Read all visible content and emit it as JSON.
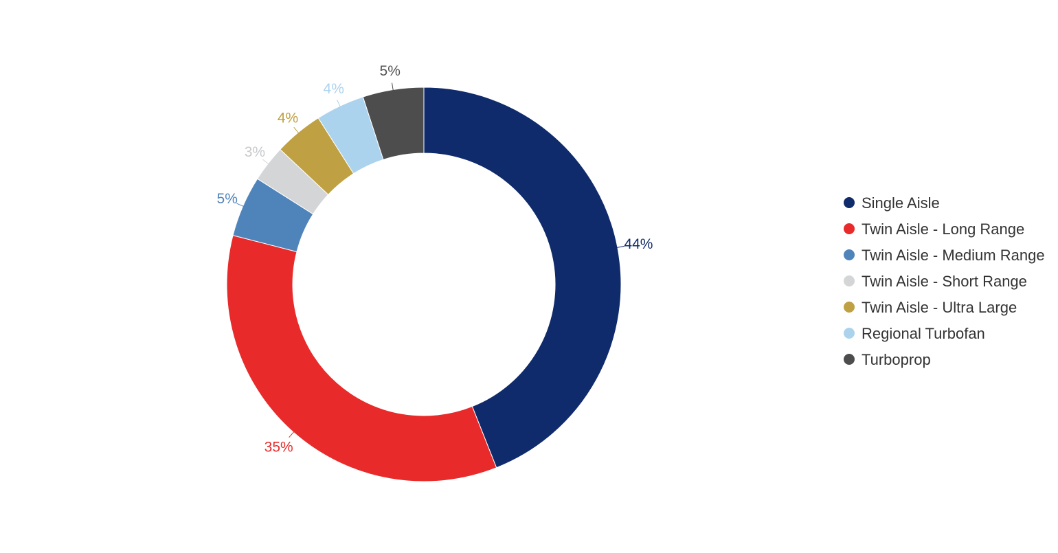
{
  "chart_data": {
    "type": "pie",
    "variant": "donut",
    "title": "",
    "legend_position": "right",
    "series": [
      {
        "name": "Single Aisle",
        "value": 44,
        "label": "44%",
        "color": "#0f2b6b"
      },
      {
        "name": "Twin Aisle - Long Range",
        "value": 35,
        "label": "35%",
        "color": "#e82a2a"
      },
      {
        "name": "Twin Aisle - Medium Range",
        "value": 5,
        "label": "5%",
        "color": "#4f84bb"
      },
      {
        "name": "Twin Aisle - Short Range",
        "value": 3,
        "label": "3%",
        "color": "#d4d5d7"
      },
      {
        "name": "Twin Aisle - Ultra Large",
        "value": 4,
        "label": "4%",
        "color": "#bfa042"
      },
      {
        "name": "Regional Turbofan",
        "value": 4,
        "label": "4%",
        "color": "#acd3ee"
      },
      {
        "name": "Turboprop",
        "value": 5,
        "label": "5%",
        "color": "#4d4d4d"
      }
    ]
  }
}
